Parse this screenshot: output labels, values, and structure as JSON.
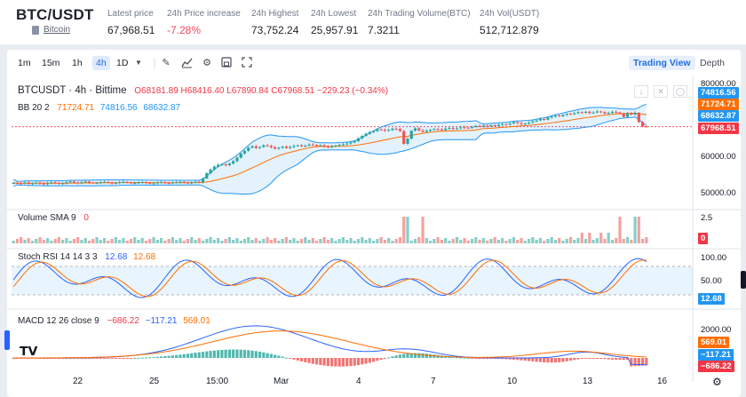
{
  "header": {
    "pair": "BTC/USDT",
    "sub_label": "Bitcoin",
    "stats": [
      {
        "label": "Latest price",
        "value": "67,968.51",
        "negative": false
      },
      {
        "label": "24h Price increase",
        "value": "-7.28%",
        "negative": true
      },
      {
        "label": "24h Highest",
        "value": "73,752.24",
        "negative": false
      },
      {
        "label": "24h Lowest",
        "value": "25,957.91",
        "negative": false
      },
      {
        "label": "24h Trading Volume(BTC)",
        "value": "7.3211",
        "negative": false
      },
      {
        "label": "24h Vol(USDT)",
        "value": "512,712.879",
        "negative": false
      }
    ]
  },
  "toolbar": {
    "intervals": [
      "1m",
      "15m",
      "1h",
      "4h",
      "1D"
    ],
    "active_interval": "4h",
    "tools": [
      "pencil-icon",
      "indicators-icon",
      "settings-icon",
      "snapshot-icon",
      "fullscreen-icon"
    ],
    "trading_view": "Trading View",
    "depth": "Depth"
  },
  "chart_legend": {
    "symbol": "BTCUSDT · 4h · Bittime",
    "ohlc": "O68181.89 H68416.40 L67890.84 C67968.51 −229.23 (−0.34%)",
    "bb_label": "BB 20 2",
    "bb_mid": "71724.71",
    "bb_upper": "74816.56",
    "bb_lower": "68632.87",
    "volume_label": "Volume SMA 9",
    "volume_value": "0",
    "stoch_label": "Stoch RSI 14 14 3 3",
    "stoch_k": "12.68",
    "stoch_d": "12.68",
    "macd_label": "MACD 12 26 close 9",
    "macd_hist": "−686.22",
    "macd_line": "−117.21",
    "macd_signal": "569.01"
  },
  "price_axis": {
    "ticks": [
      "80000.00",
      "60000.00",
      "50000.00"
    ],
    "labels": {
      "upper": "74816.56",
      "mid": "71724.71",
      "lower": "68632.87",
      "last": "67968.51"
    }
  },
  "volume_axis": {
    "ticks": [
      "2.5"
    ],
    "label": "0"
  },
  "stoch_axis": {
    "ticks": [
      "100.00",
      "50.00"
    ],
    "label": "12.68"
  },
  "macd_axis": {
    "ticks": [
      "2000.00"
    ],
    "labels": {
      "signal": "569.01",
      "line": "−117.21",
      "hist": "−686.22"
    }
  },
  "time_axis": [
    "22",
    "25",
    "15:00",
    "Mar",
    "4",
    "7",
    "10",
    "13",
    "16"
  ],
  "colors": {
    "up": "#26a69a",
    "down": "#ef5350",
    "bb_band": "#2196f3",
    "bb_mid": "#ff6d00",
    "accent": "#1f6fe5"
  },
  "chart_data": {
    "type": "candlestick",
    "ylim": [
      45000,
      81000
    ],
    "price_ticks": [
      80000,
      60000,
      50000
    ],
    "note_values": {
      "last_close": 67968.51,
      "bb_upper": 74816.56,
      "bb_mid": 71724.71,
      "bb_lower": 68632.87
    },
    "closes": [
      51700,
      51600,
      51500,
      51800,
      51400,
      51600,
      51800,
      51500,
      51300,
      51600,
      51900,
      51700,
      51400,
      51600,
      51900,
      52100,
      51800,
      51600,
      51900,
      52100,
      51800,
      51600,
      51700,
      51900,
      52000,
      51800,
      51500,
      51700,
      51900,
      52000,
      51800,
      51600,
      51700,
      51800,
      51900,
      51700,
      51500,
      51600,
      51800,
      51900,
      51700,
      51600,
      51800,
      51900,
      52000,
      51800,
      51700,
      51800,
      52000,
      51900,
      53000,
      54500,
      55600,
      56400,
      56900,
      57100,
      56800,
      57300,
      58000,
      59000,
      60200,
      61000,
      61900,
      62300,
      61800,
      62100,
      62600,
      62400,
      62000,
      61600,
      61900,
      62200,
      61800,
      62100,
      62400,
      62600,
      62300,
      62500,
      62800,
      62700,
      62400,
      62600,
      62200,
      62000,
      62300,
      62500,
      62700,
      62900,
      63100,
      63400,
      63800,
      64600,
      65300,
      65900,
      66400,
      66700,
      67200,
      67100,
      66800,
      67000,
      67400,
      67300,
      66700,
      63000,
      64500,
      66800,
      67500,
      66900,
      66500,
      66800,
      67100,
      67300,
      67200,
      67000,
      67400,
      67600,
      67300,
      67500,
      67800,
      67700,
      67600,
      67900,
      68200,
      68000,
      68300,
      68100,
      68400,
      68200,
      68500,
      68700,
      68600,
      68900,
      69300,
      69000,
      68700,
      68900,
      69200,
      69500,
      69800,
      70200,
      70000,
      70600,
      70900,
      71200,
      71000,
      71400,
      71700,
      71600,
      71900,
      72200,
      72000,
      72300,
      71900,
      72100,
      72400,
      72200,
      71800,
      72000,
      72300,
      72100,
      71800,
      70800,
      71900,
      71500,
      72000,
      69300,
      68100,
      67968
    ]
  }
}
